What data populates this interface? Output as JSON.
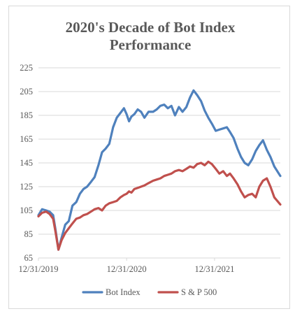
{
  "chart_data": {
    "type": "line",
    "title": "2020's Decade of Bot Index Performance",
    "title_lines": [
      "2020's Decade of Bot Index",
      "Performance"
    ],
    "xlabel": "",
    "ylabel": "",
    "x_tick_labels": [
      "12/31/2019",
      "12/31/2020",
      "12/31/2021"
    ],
    "y_tick_labels": [
      "65",
      "85",
      "105",
      "125",
      "145",
      "165",
      "185",
      "205",
      "225"
    ],
    "ylim": [
      65,
      225
    ],
    "yticks": [
      65,
      85,
      105,
      125,
      145,
      165,
      185,
      205,
      225
    ],
    "x_start": "2019-12-31",
    "x_end": "2022-09-30",
    "xticks": [
      "2019-12-31",
      "2020-12-31",
      "2021-12-31"
    ],
    "grid": {
      "horizontal": true,
      "vertical": false
    },
    "legend_position": "bottom",
    "series": [
      {
        "name": "Bot Index",
        "color": "#4f81bd",
        "x": [
          "2019-12-31",
          "2020-01-15",
          "2020-02-01",
          "2020-02-15",
          "2020-03-01",
          "2020-03-10",
          "2020-03-23",
          "2020-04-05",
          "2020-04-20",
          "2020-05-05",
          "2020-05-20",
          "2020-06-05",
          "2020-06-20",
          "2020-07-05",
          "2020-07-20",
          "2020-08-05",
          "2020-08-20",
          "2020-09-05",
          "2020-09-20",
          "2020-10-05",
          "2020-10-20",
          "2020-11-05",
          "2020-11-20",
          "2020-12-05",
          "2020-12-20",
          "2020-12-31",
          "2021-01-10",
          "2021-01-20",
          "2021-02-01",
          "2021-02-15",
          "2021-03-01",
          "2021-03-15",
          "2021-04-01",
          "2021-04-20",
          "2021-05-05",
          "2021-05-20",
          "2021-06-05",
          "2021-06-20",
          "2021-07-05",
          "2021-07-20",
          "2021-08-05",
          "2021-08-20",
          "2021-09-05",
          "2021-09-20",
          "2021-10-05",
          "2021-10-20",
          "2021-11-05",
          "2021-11-20",
          "2021-12-05",
          "2021-12-20",
          "2022-01-05",
          "2022-01-20",
          "2022-02-05",
          "2022-02-20",
          "2022-03-05",
          "2022-03-20",
          "2022-04-05",
          "2022-04-20",
          "2022-05-05",
          "2022-05-20",
          "2022-06-05",
          "2022-06-20",
          "2022-07-05",
          "2022-07-20",
          "2022-08-05",
          "2022-08-20",
          "2022-09-05",
          "2022-09-30"
        ],
        "values": [
          101,
          106,
          105,
          104,
          101,
          90,
          72,
          82,
          93,
          96,
          109,
          112,
          119,
          123,
          125,
          129,
          133,
          143,
          154,
          157,
          161,
          175,
          183,
          187,
          191,
          186,
          180,
          184,
          186,
          190,
          188,
          183,
          188,
          188,
          190,
          193,
          194,
          191,
          193,
          185,
          192,
          188,
          192,
          200,
          206,
          202,
          197,
          189,
          183,
          178,
          172,
          173,
          174,
          175,
          171,
          166,
          157,
          150,
          145,
          143,
          148,
          155,
          160,
          164,
          156,
          150,
          142,
          134
        ]
      },
      {
        "name": "S & P 500",
        "color": "#c0504d",
        "x": [
          "2019-12-31",
          "2020-01-15",
          "2020-02-01",
          "2020-02-15",
          "2020-03-01",
          "2020-03-10",
          "2020-03-23",
          "2020-04-05",
          "2020-04-20",
          "2020-05-05",
          "2020-05-20",
          "2020-06-05",
          "2020-06-20",
          "2020-07-05",
          "2020-07-20",
          "2020-08-05",
          "2020-08-20",
          "2020-09-05",
          "2020-09-20",
          "2020-10-05",
          "2020-10-20",
          "2020-11-05",
          "2020-11-20",
          "2020-12-05",
          "2020-12-20",
          "2020-12-31",
          "2021-01-10",
          "2021-01-20",
          "2021-02-01",
          "2021-02-15",
          "2021-03-01",
          "2021-03-15",
          "2021-04-01",
          "2021-04-20",
          "2021-05-05",
          "2021-05-20",
          "2021-06-05",
          "2021-06-20",
          "2021-07-05",
          "2021-07-20",
          "2021-08-05",
          "2021-08-20",
          "2021-09-05",
          "2021-09-20",
          "2021-10-05",
          "2021-10-20",
          "2021-11-05",
          "2021-11-20",
          "2021-12-05",
          "2021-12-20",
          "2022-01-05",
          "2022-01-20",
          "2022-02-05",
          "2022-02-20",
          "2022-03-05",
          "2022-03-20",
          "2022-04-05",
          "2022-04-20",
          "2022-05-05",
          "2022-05-20",
          "2022-06-05",
          "2022-06-20",
          "2022-07-05",
          "2022-07-20",
          "2022-08-05",
          "2022-08-20",
          "2022-09-05",
          "2022-09-30"
        ],
        "values": [
          100,
          103,
          104,
          102,
          98,
          88,
          72,
          80,
          86,
          90,
          94,
          98,
          99,
          101,
          102,
          104,
          106,
          107,
          105,
          109,
          111,
          112,
          113,
          116,
          118,
          119,
          121,
          120,
          123,
          124,
          125,
          126,
          128,
          130,
          131,
          132,
          134,
          135,
          136,
          138,
          139,
          138,
          140,
          142,
          141,
          144,
          145,
          143,
          146,
          144,
          140,
          136,
          138,
          134,
          136,
          132,
          127,
          121,
          116,
          118,
          119,
          116,
          125,
          130,
          132,
          125,
          116,
          110
        ]
      }
    ]
  }
}
